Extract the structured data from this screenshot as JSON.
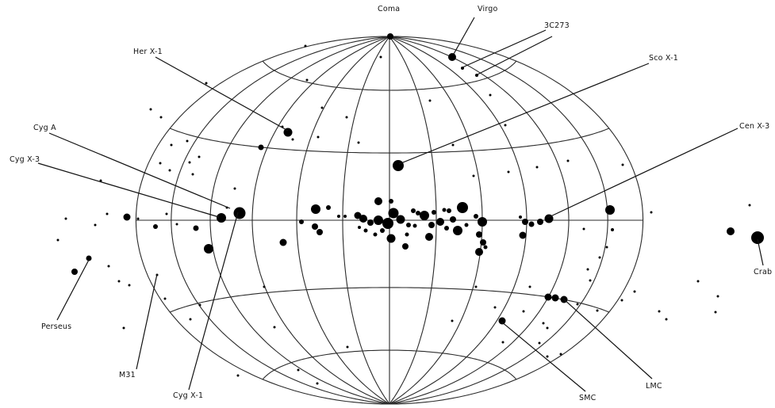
{
  "labels": {
    "coma": "Coma",
    "virgo": "Virgo",
    "c3c273": "3C273",
    "herx1": "Her X-1",
    "scox1": "Sco X-1",
    "cyga": "Cyg A",
    "cenx3": "Cen X-3",
    "cygx3": "Cyg X-3",
    "perseus": "Perseus",
    "crab": "Crab",
    "m31": "M31",
    "cygx1": "Cyg X-1",
    "smc": "SMC",
    "lmc": "LMC"
  }
}
